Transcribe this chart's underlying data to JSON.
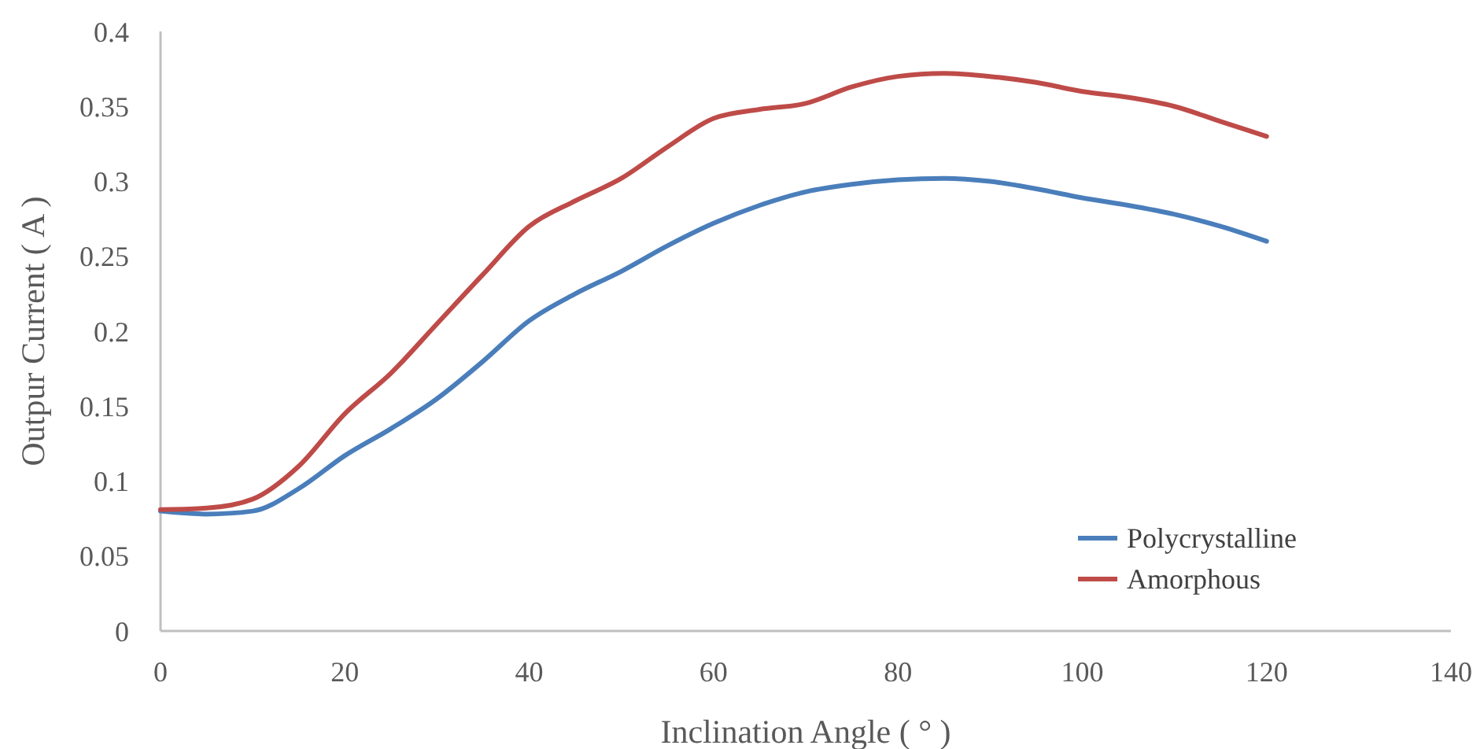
{
  "chart_data": {
    "type": "line",
    "xlabel": "Inclination Angle ( ° )",
    "ylabel": "Outpur Current ( A )",
    "x": [
      0,
      5,
      10,
      15,
      20,
      25,
      30,
      35,
      40,
      45,
      50,
      55,
      60,
      65,
      70,
      75,
      80,
      85,
      90,
      95,
      100,
      105,
      110,
      115,
      120
    ],
    "series": [
      {
        "name": "Polycrystalline",
        "color": "#4a7ebb",
        "values": [
          0.08,
          0.078,
          0.08,
          0.095,
          0.117,
          0.135,
          0.155,
          0.18,
          0.207,
          0.225,
          0.24,
          0.257,
          0.272,
          0.284,
          0.293,
          0.298,
          0.301,
          0.302,
          0.3,
          0.295,
          0.289,
          0.284,
          0.278,
          0.27,
          0.26
        ]
      },
      {
        "name": "Amorphous",
        "color": "#be4b48",
        "values": [
          0.081,
          0.082,
          0.088,
          0.11,
          0.145,
          0.172,
          0.205,
          0.238,
          0.27,
          0.287,
          0.302,
          0.323,
          0.342,
          0.348,
          0.352,
          0.363,
          0.37,
          0.372,
          0.37,
          0.366,
          0.36,
          0.356,
          0.35,
          0.34,
          0.33
        ]
      }
    ],
    "xlim": [
      0,
      140
    ],
    "xticks": [
      0,
      20,
      40,
      60,
      80,
      100,
      120,
      140
    ],
    "ylim": [
      0,
      0.4
    ],
    "yticks": [
      0,
      0.05,
      0.1,
      0.15,
      0.2,
      0.25,
      0.3,
      0.35,
      0.4
    ],
    "grid": false,
    "legend": "bottom right",
    "marker": "none",
    "line_style": "solid"
  }
}
